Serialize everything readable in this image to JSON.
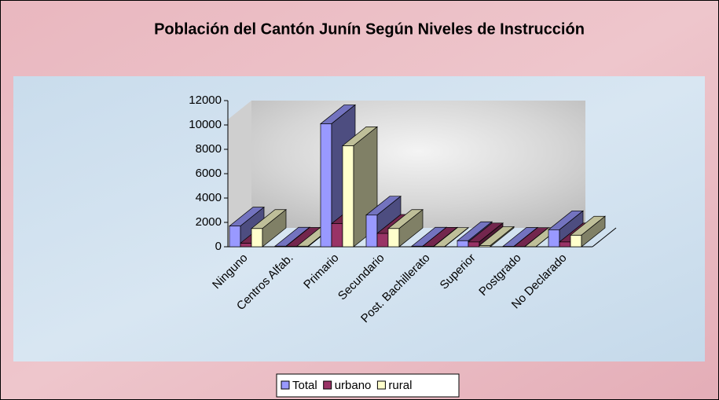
{
  "chart_data": {
    "type": "bar3d",
    "title": "Población del Cantón Junín Según Niveles de Instrucción",
    "categories": [
      "Ninguno",
      "Centros Alfab.",
      "Primario",
      "Secundario",
      "Post. Bachillerato",
      "Superior",
      "Postgrado",
      "No Declarado"
    ],
    "series": [
      {
        "name": "Total",
        "color": "#9999ff",
        "values": [
          1700,
          50,
          10100,
          2600,
          50,
          500,
          30,
          1400
        ]
      },
      {
        "name": "urbano",
        "color": "#993366",
        "values": [
          300,
          30,
          1900,
          1100,
          40,
          400,
          20,
          400
        ]
      },
      {
        "name": "rural",
        "color": "#ffffcc",
        "values": [
          1500,
          50,
          8300,
          1500,
          20,
          100,
          10,
          950
        ]
      }
    ],
    "ylim": [
      0,
      12000
    ],
    "yticks": [
      0,
      2000,
      4000,
      6000,
      8000,
      10000,
      12000
    ],
    "legend": "bottom"
  }
}
